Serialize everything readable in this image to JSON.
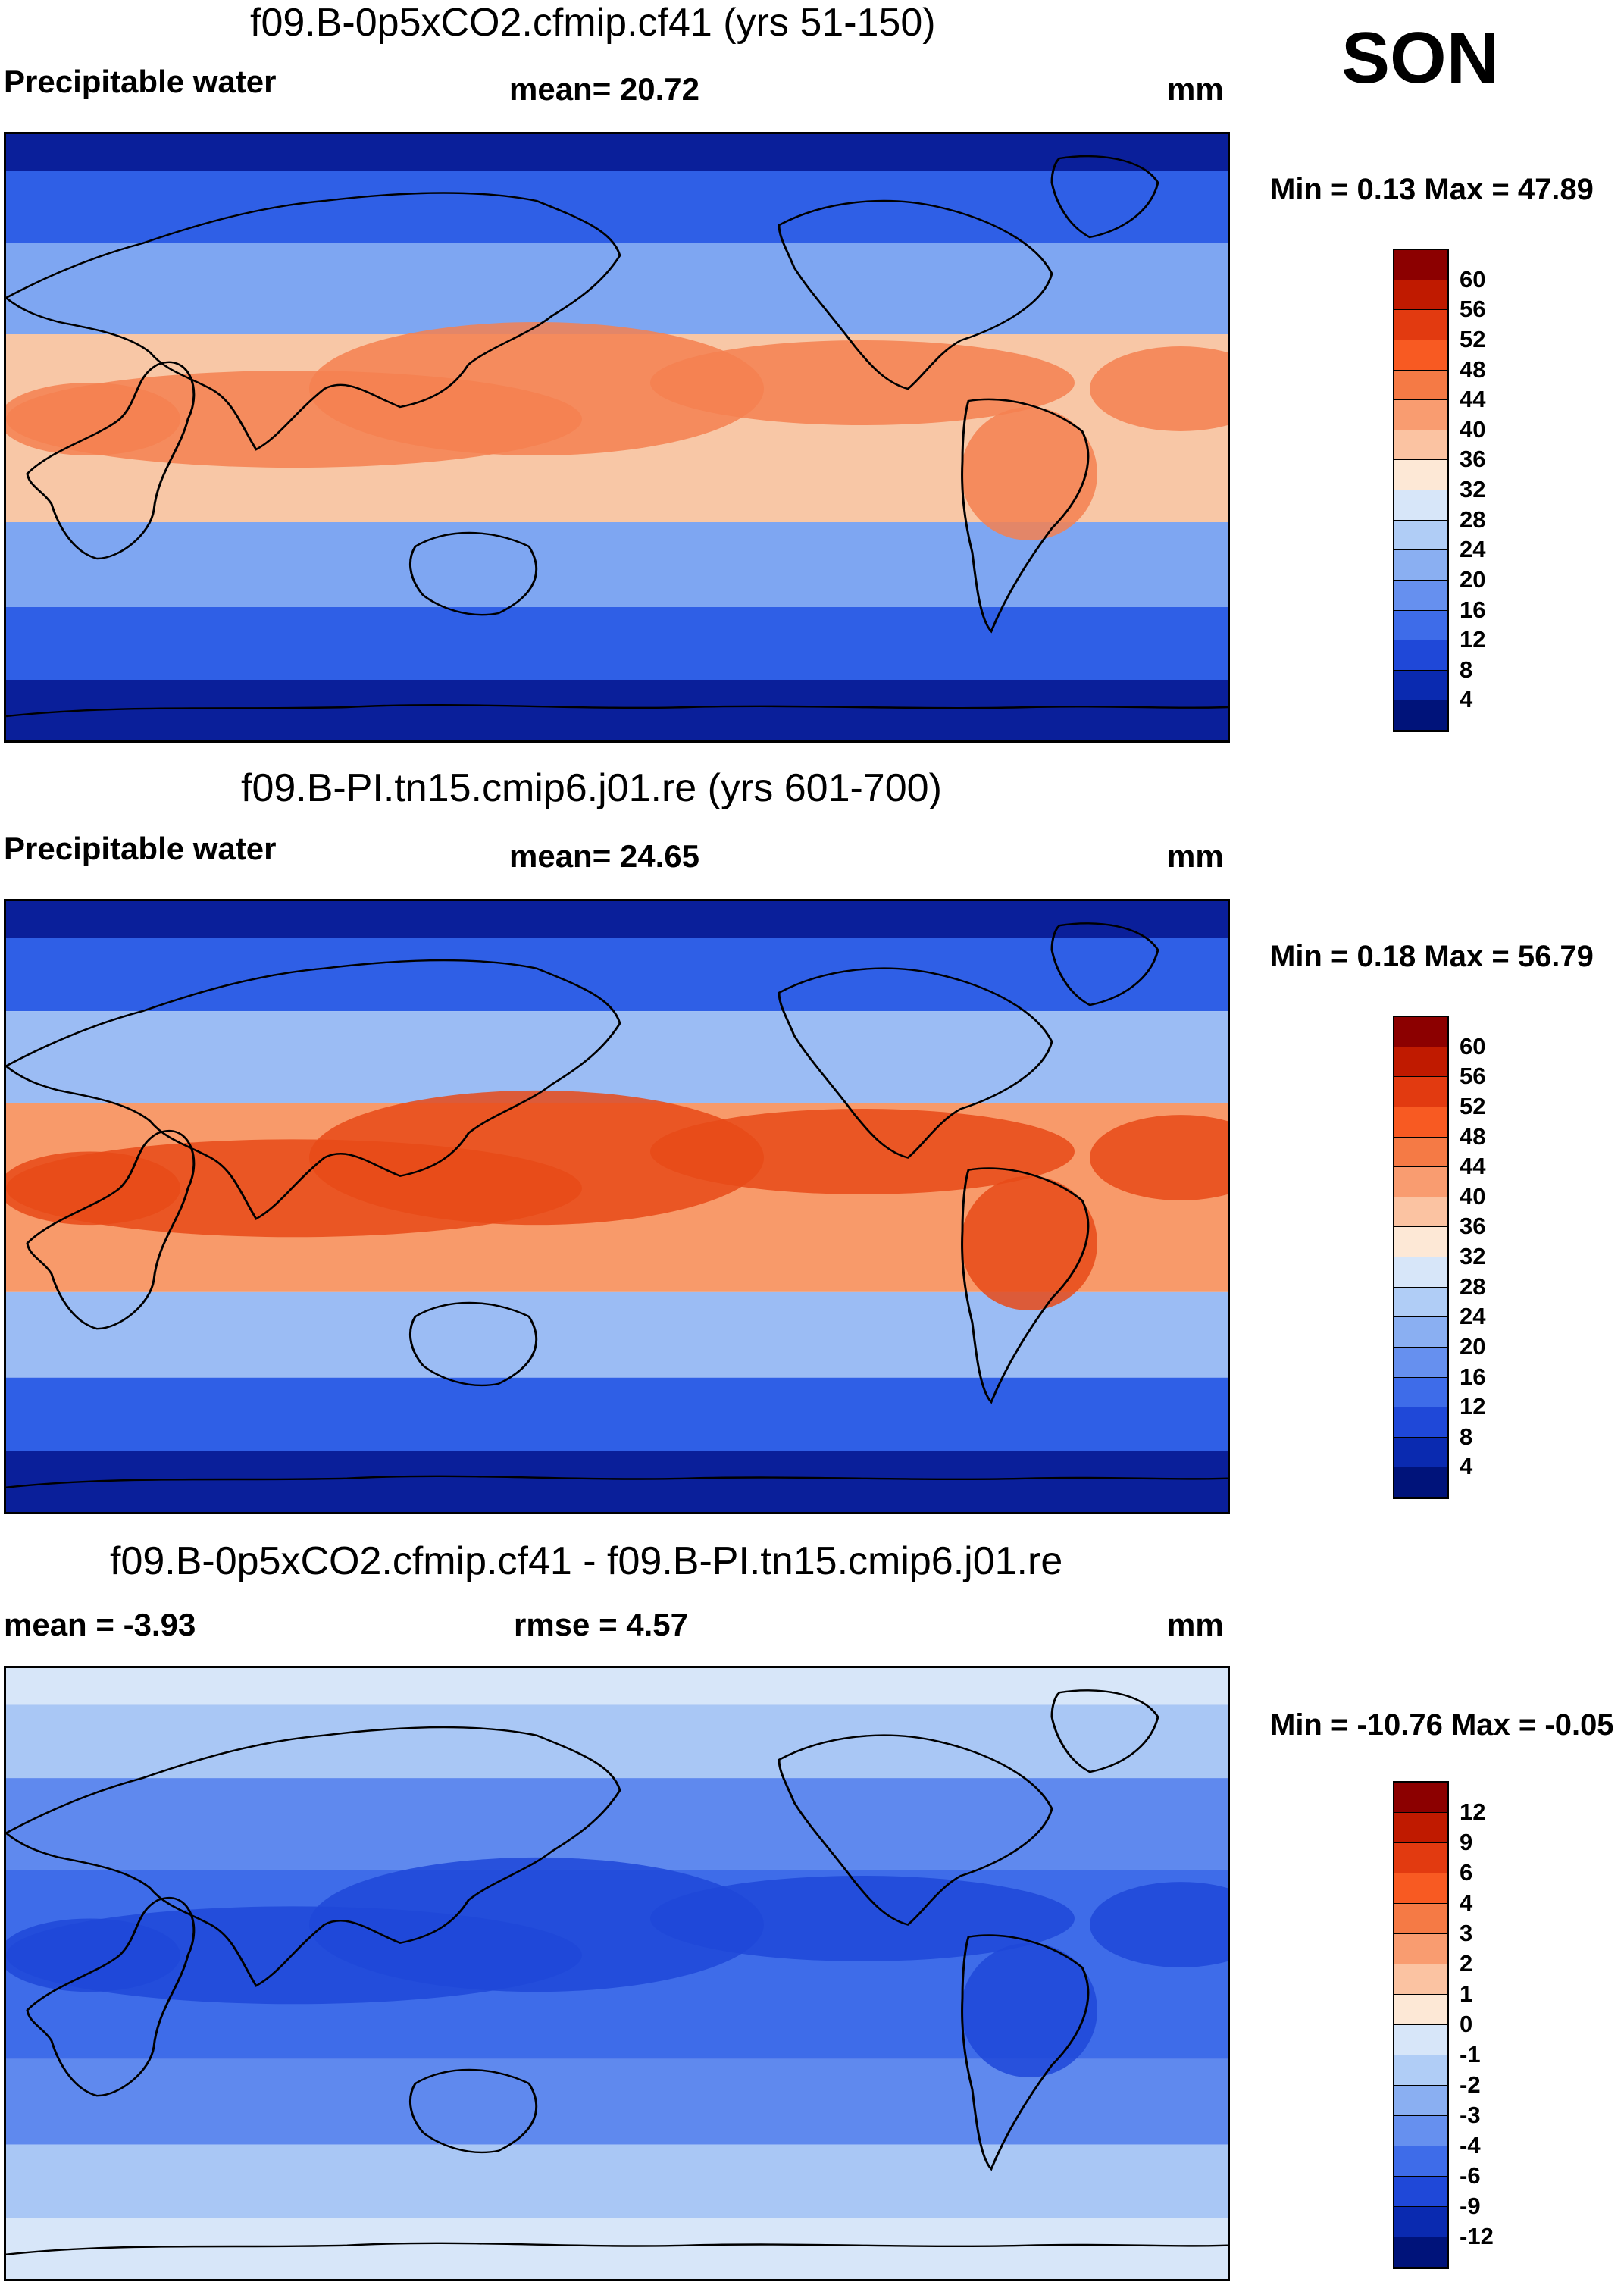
{
  "season": "SON",
  "panels": [
    {
      "id": "p1",
      "title": "f09.B-0p5xCO2.cfmip.cf41 (yrs 51-150)",
      "left_label": "Precipitable water",
      "center_label": "mean=  20.72",
      "units": "mm",
      "minmax": "Min =   0.13 Max =  47.89",
      "colorbar": {
        "ticks": [
          "60",
          "56",
          "52",
          "48",
          "44",
          "40",
          "36",
          "32",
          "28",
          "24",
          "20",
          "16",
          "12",
          "8",
          "4"
        ],
        "colors": [
          "#8c0000",
          "#c01a00",
          "#e23a10",
          "#f85a22",
          "#f57a45",
          "#f99c70",
          "#fbc3a2",
          "#fde8d6",
          "#d7e6f9",
          "#b0cdf6",
          "#8aaff2",
          "#6690ef",
          "#3e6ce9",
          "#1f48d8",
          "#0a2ab0",
          "#00137a"
        ]
      },
      "map": {
        "polar_color": "#0a1f9a",
        "midlat_color": "#2f5fe6",
        "subtrop_color": "#7ea6f2",
        "tropic_color": "#f8c7a6",
        "core_color": "#f58050"
      }
    },
    {
      "id": "p2",
      "title": "f09.B-PI.tn15.cmip6.j01.re (yrs 601-700)",
      "left_label": "Precipitable water",
      "center_label": "mean=  24.65",
      "units": "mm",
      "minmax": "Min =   0.18 Max =  56.79",
      "colorbar": {
        "ticks": [
          "60",
          "56",
          "52",
          "48",
          "44",
          "40",
          "36",
          "32",
          "28",
          "24",
          "20",
          "16",
          "12",
          "8",
          "4"
        ],
        "colors": [
          "#8c0000",
          "#c01a00",
          "#e23a10",
          "#f85a22",
          "#f57a45",
          "#f99c70",
          "#fbc3a2",
          "#fde8d6",
          "#d7e6f9",
          "#b0cdf6",
          "#8aaff2",
          "#6690ef",
          "#3e6ce9",
          "#1f48d8",
          "#0a2ab0",
          "#00137a"
        ]
      },
      "map": {
        "polar_color": "#0a1f9a",
        "midlat_color": "#2f5fe6",
        "subtrop_color": "#9bbcf4",
        "tropic_color": "#f89a6a",
        "core_color": "#e84a18"
      }
    },
    {
      "id": "p3",
      "title": "f09.B-0p5xCO2.cfmip.cf41 - f09.B-PI.tn15.cmip6.j01.re",
      "left_label": "mean =  -3.93",
      "center_label": "rmse =    4.57",
      "units": "mm",
      "minmax": "Min = -10.76 Max =  -0.05",
      "colorbar": {
        "ticks": [
          "12",
          "9",
          "6",
          "4",
          "3",
          "2",
          "1",
          "0",
          "-1",
          "-2",
          "-3",
          "-4",
          "-6",
          "-9",
          "-12"
        ],
        "colors": [
          "#8c0000",
          "#c01a00",
          "#e23a10",
          "#f85a22",
          "#f57a45",
          "#f99c70",
          "#fbc3a2",
          "#fde8d6",
          "#d7e6f9",
          "#b0cdf6",
          "#8aaff2",
          "#6690ef",
          "#3e6ce9",
          "#1f48d8",
          "#0a2ab0",
          "#00137a"
        ]
      },
      "map": {
        "polar_color": "#d7e6f9",
        "midlat_color": "#a9c7f5",
        "subtrop_color": "#5f89ee",
        "tropic_color": "#3e6ce9",
        "core_color": "#1f48d8"
      }
    }
  ]
}
